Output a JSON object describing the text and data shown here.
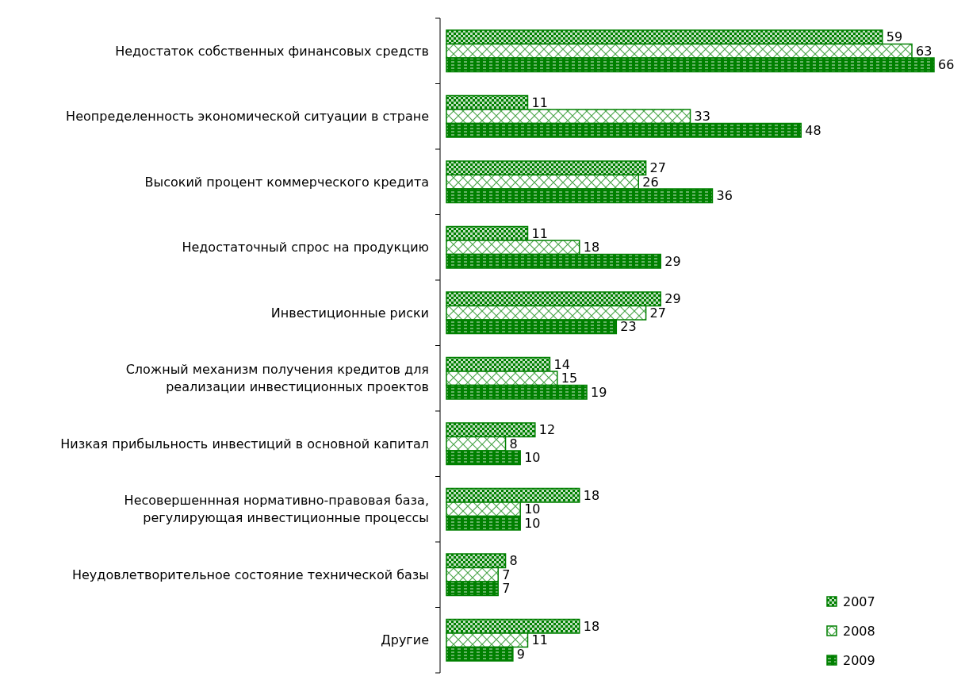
{
  "chart_data": {
    "type": "bar",
    "orientation": "horizontal",
    "categories": [
      "Недостаток собственных финансовых средств",
      "Неопределенность экономической ситуации в стране",
      "Высокий процент коммерческого кредита",
      "Недостаточный спрос на продукцию",
      "Инвестиционные риски",
      "Сложный механизм получения кредитов для\nреализации инвестиционных проектов",
      "Низкая   прибыльность инвестиций в основной капитал",
      "Несовершеннная нормативно-правовая база,\nрегулирующая инвестиционные процессы",
      "Неудовлетворительное состояние технической базы",
      "Другие"
    ],
    "series": [
      {
        "name": "2007",
        "color": "#008000",
        "values": [
          59,
          11,
          27,
          11,
          29,
          14,
          12,
          18,
          8,
          18
        ]
      },
      {
        "name": "2008",
        "color": "#008000",
        "values": [
          63,
          33,
          26,
          18,
          27,
          15,
          8,
          10,
          7,
          11
        ]
      },
      {
        "name": "2009",
        "color": "#008000",
        "values": [
          66,
          48,
          36,
          29,
          23,
          19,
          10,
          10,
          7,
          9
        ]
      }
    ],
    "data_labels": true,
    "legend": "bottom right",
    "grid": false
  }
}
